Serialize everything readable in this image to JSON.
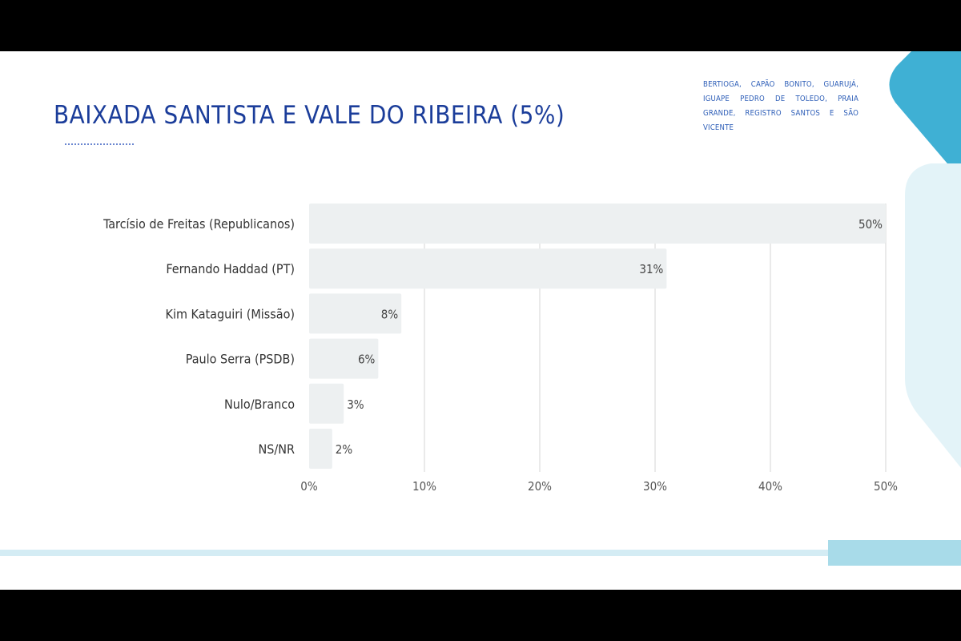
{
  "slide": {
    "title": "BAIXADA SANTISTA E VALE DO RIBEIRA (5%)",
    "municipios": "BERTIOGA, CAPÃO BONITO, GUARUJÁ, IGUAPE PEDRO DE TOLEDO, PRAIA GRANDE, REGISTRO SANTOS E SÃO VICENTE"
  },
  "colors": {
    "title": "#1b3d9a",
    "bar": "#edf0f1",
    "accent": "#3fb0d4",
    "accent_light": "#e3f3f8",
    "grid": "#d6d6d6"
  },
  "chart_data": {
    "type": "bar",
    "orientation": "horizontal",
    "categories": [
      "Tarcísio de Freitas (Republicanos)",
      "Fernando Haddad (PT)",
      "Kim Kataguiri (Missão)",
      "Paulo Serra (PSDB)",
      "Nulo/Branco",
      "NS/NR"
    ],
    "values": [
      50,
      31,
      8,
      6,
      3,
      2
    ],
    "value_labels": [
      "50%",
      "31%",
      "8%",
      "6%",
      "3%",
      "2%"
    ],
    "xlim": [
      0,
      50
    ],
    "xticks": [
      0,
      10,
      20,
      30,
      40,
      50
    ],
    "xtick_labels": [
      "0%",
      "10%",
      "20%",
      "30%",
      "40%",
      "50%"
    ],
    "grid": true,
    "legend": "none"
  }
}
